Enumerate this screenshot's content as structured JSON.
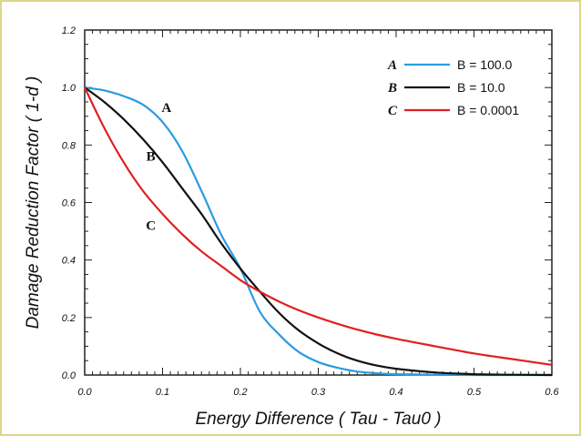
{
  "chart_data": {
    "type": "line",
    "xlabel": "Energy Difference ( Tau - Tau0 )",
    "ylabel": "Damage Reduction Factor ( 1-d )",
    "xlim": [
      0.0,
      0.6
    ],
    "ylim": [
      0.0,
      1.2
    ],
    "x_ticks": [
      "0.0",
      "0.1",
      "0.2",
      "0.3",
      "0.4",
      "0.5",
      "0.6"
    ],
    "y_ticks": [
      "0.0",
      "0.2",
      "0.4",
      "0.6",
      "0.8",
      "1.0",
      "1.2"
    ],
    "grid": false,
    "legend_position": "top-right",
    "x": [
      0.0,
      0.025,
      0.05,
      0.075,
      0.1,
      0.125,
      0.15,
      0.175,
      0.2,
      0.225,
      0.25,
      0.275,
      0.3,
      0.325,
      0.35,
      0.375,
      0.4,
      0.45,
      0.5,
      0.55,
      0.6
    ],
    "series": [
      {
        "name": "B = 100.0",
        "letter": "A",
        "color": "#2a9be0",
        "values": [
          1.0,
          0.99,
          0.97,
          0.94,
          0.88,
          0.78,
          0.64,
          0.49,
          0.37,
          0.22,
          0.14,
          0.08,
          0.045,
          0.025,
          0.012,
          0.006,
          0.003,
          0.001,
          0.0,
          0.0,
          0.0
        ]
      },
      {
        "name": "B = 10.0",
        "letter": "B",
        "color": "#111111",
        "values": [
          1.0,
          0.95,
          0.89,
          0.82,
          0.74,
          0.65,
          0.56,
          0.46,
          0.37,
          0.29,
          0.215,
          0.155,
          0.11,
          0.075,
          0.05,
          0.033,
          0.022,
          0.009,
          0.003,
          0.001,
          0.0
        ]
      },
      {
        "name": "B = 0.0001",
        "letter": "C",
        "color": "#e02020",
        "values": [
          1.0,
          0.86,
          0.74,
          0.64,
          0.56,
          0.49,
          0.43,
          0.38,
          0.33,
          0.29,
          0.255,
          0.225,
          0.2,
          0.178,
          0.158,
          0.141,
          0.126,
          0.1,
          0.075,
          0.055,
          0.035
        ]
      }
    ],
    "annotations": [
      {
        "text": "A",
        "x": 0.105,
        "y": 0.915
      },
      {
        "text": "B",
        "x": 0.085,
        "y": 0.745
      },
      {
        "text": "C",
        "x": 0.085,
        "y": 0.505
      }
    ]
  }
}
